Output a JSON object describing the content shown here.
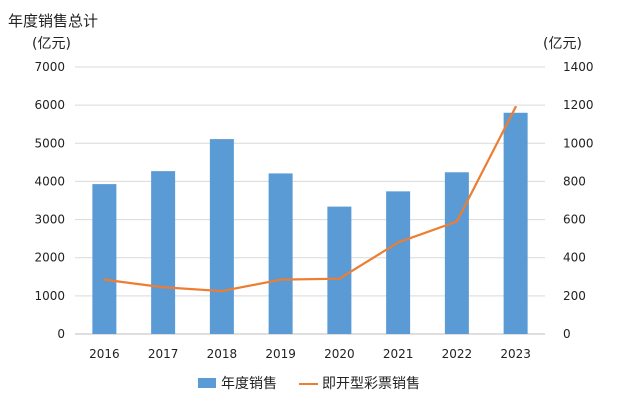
{
  "chart_data": {
    "type": "bar",
    "categories": [
      "2016",
      "2017",
      "2018",
      "2019",
      "2020",
      "2021",
      "2022",
      "2023"
    ],
    "series": [
      {
        "name": "年度销售",
        "type": "bar",
        "axis": "left",
        "color": "#5b9bd5",
        "values": [
          3930,
          4270,
          5110,
          4210,
          3340,
          3740,
          4240,
          5800
        ]
      },
      {
        "name": "即开型彩票销售",
        "type": "line",
        "axis": "right",
        "color": "#ed7d31",
        "values": [
          285,
          245,
          225,
          285,
          290,
          480,
          590,
          1190
        ]
      }
    ],
    "title": "年度销售总计",
    "ylabel": "(亿元)",
    "y2label": "(亿元)",
    "ylim": [
      0,
      7000
    ],
    "y2lim": [
      0,
      1400
    ],
    "yticks": [
      "0",
      "1000",
      "2000",
      "3000",
      "4000",
      "5000",
      "6000",
      "7000"
    ],
    "y2ticks": [
      "0",
      "200",
      "400",
      "600",
      "800",
      "1000",
      "1200",
      "1400"
    ],
    "grid": true,
    "legend": "bottom"
  }
}
